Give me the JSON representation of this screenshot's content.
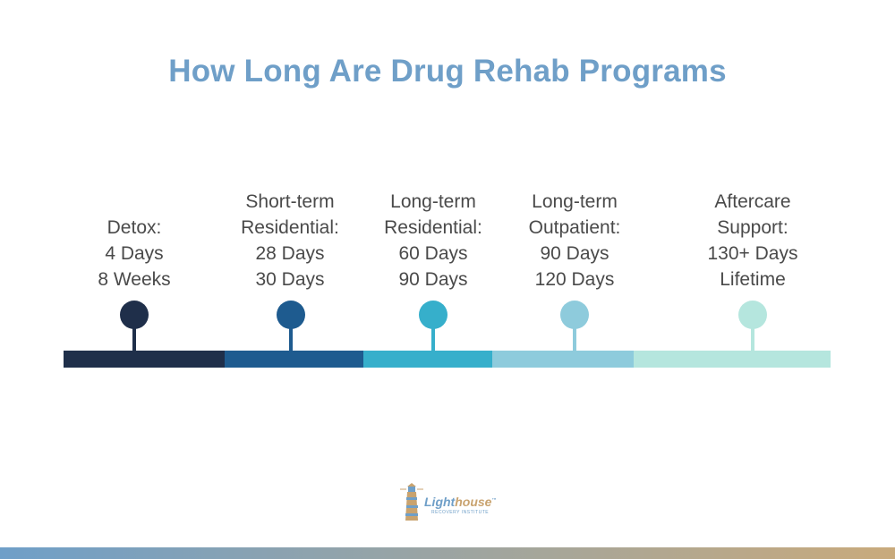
{
  "title": "How Long Are Drug Rehab Programs",
  "stages": [
    {
      "lines": [
        "Detox:",
        "4 Days",
        "8 Weeks"
      ],
      "color": "#1f2f4a"
    },
    {
      "lines": [
        "Short-term",
        "Residential:",
        "28 Days",
        "30 Days"
      ],
      "color": "#1e5b8f"
    },
    {
      "lines": [
        "Long-term",
        "Residential:",
        "60 Days",
        "90 Days"
      ],
      "color": "#36afcb"
    },
    {
      "lines": [
        "Long-term",
        "Outpatient:",
        "90 Days",
        "120 Days"
      ],
      "color": "#8ecbdc"
    },
    {
      "lines": [
        "Aftercare",
        "Support:",
        "130+ Days",
        "Lifetime"
      ],
      "color": "#b5e6de"
    }
  ],
  "logo": {
    "brand_light": "Light",
    "brand_house": "house",
    "tm": "™",
    "tagline": "RECOVERY INSTITUTE"
  }
}
